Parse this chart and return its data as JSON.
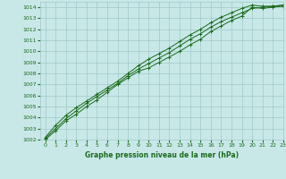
{
  "title": "Graphe pression niveau de la mer (hPa)",
  "background_color": "#c8e8e8",
  "grid_color": "#a0c8c8",
  "line_color": "#1a6b1a",
  "marker_color": "#1a6b1a",
  "xlim": [
    -0.5,
    23
  ],
  "ylim": [
    1002,
    1014.5
  ],
  "xticks": [
    0,
    1,
    2,
    3,
    4,
    5,
    6,
    7,
    8,
    9,
    10,
    11,
    12,
    13,
    14,
    15,
    16,
    17,
    18,
    19,
    20,
    21,
    22,
    23
  ],
  "yticks": [
    1002,
    1003,
    1004,
    1005,
    1006,
    1007,
    1008,
    1009,
    1010,
    1011,
    1012,
    1013,
    1014
  ],
  "series": [
    [
      1002.0,
      1002.8,
      1003.7,
      1004.3,
      1005.0,
      1005.6,
      1006.3,
      1007.0,
      1007.6,
      1008.2,
      1008.5,
      1009.0,
      1009.5,
      1010.0,
      1010.6,
      1011.1,
      1011.8,
      1012.3,
      1012.8,
      1013.2,
      1014.0,
      1013.9,
      1014.0,
      1014.1
    ],
    [
      1002.1,
      1003.0,
      1003.9,
      1004.6,
      1005.3,
      1005.9,
      1006.5,
      1007.1,
      1007.8,
      1008.4,
      1008.9,
      1009.4,
      1009.9,
      1010.5,
      1011.1,
      1011.6,
      1012.2,
      1012.7,
      1013.1,
      1013.5,
      1013.9,
      1014.0,
      1014.1,
      1014.2
    ],
    [
      1002.2,
      1003.3,
      1004.2,
      1004.9,
      1005.5,
      1006.1,
      1006.7,
      1007.3,
      1008.0,
      1008.7,
      1009.3,
      1009.8,
      1010.3,
      1010.9,
      1011.5,
      1012.0,
      1012.6,
      1013.1,
      1013.5,
      1013.9,
      1014.2,
      1014.1,
      1014.1,
      1014.2
    ]
  ]
}
